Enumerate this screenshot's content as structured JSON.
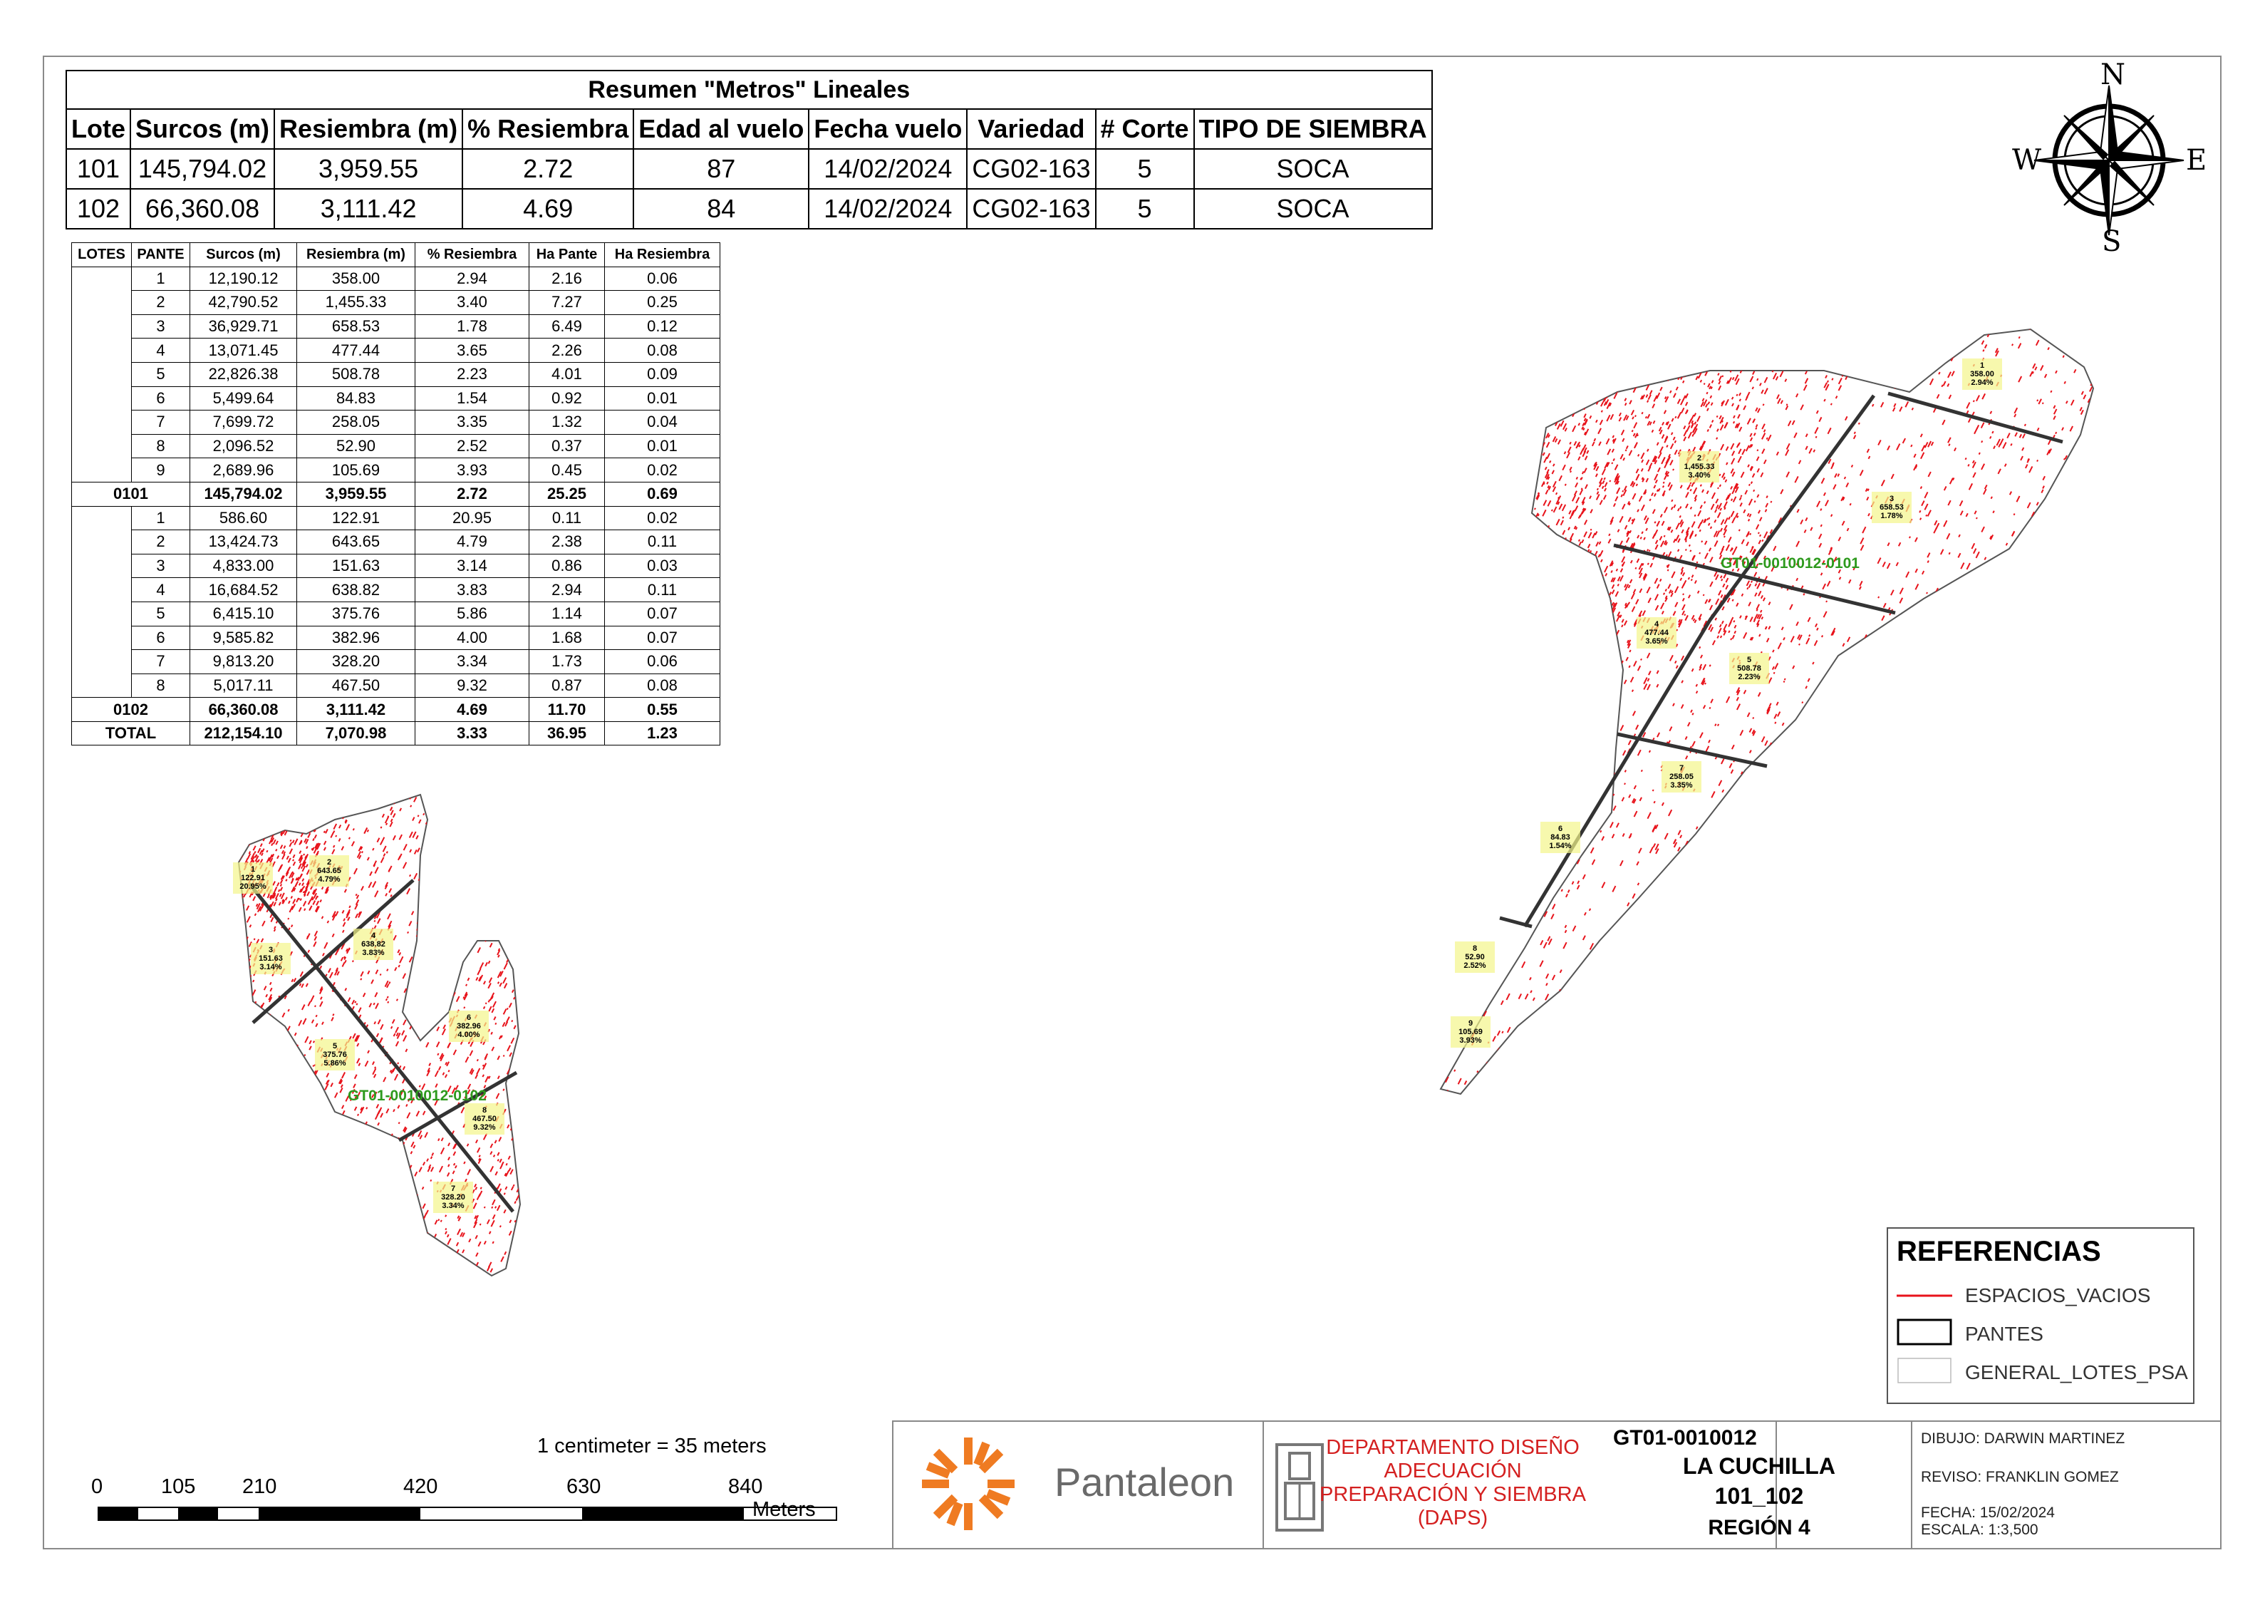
{
  "summary": {
    "title": "Resumen \"Metros\" Lineales",
    "headers": [
      "Lote",
      "Surcos (m)",
      "Resiembra (m)",
      "% Resiembra",
      "Edad al vuelo",
      "Fecha vuelo",
      "Variedad",
      "# Corte",
      "TIPO DE SIEMBRA"
    ],
    "rows": [
      [
        "101",
        "145,794.02",
        "3,959.55",
        "2.72",
        "87",
        "14/02/2024",
        "CG02-163",
        "5",
        "SOCA"
      ],
      [
        "102",
        "66,360.08",
        "3,111.42",
        "4.69",
        "84",
        "14/02/2024",
        "CG02-163",
        "5",
        "SOCA"
      ]
    ]
  },
  "detail": {
    "headers": [
      "LOTES",
      "PANTE",
      "Surcos (m)",
      "Resiembra (m)",
      "% Resiembra",
      "Ha Pante",
      "Ha Resiembra"
    ],
    "lote101_rows": [
      [
        "1",
        "12,190.12",
        "358.00",
        "2.94",
        "2.16",
        "0.06"
      ],
      [
        "2",
        "42,790.52",
        "1,455.33",
        "3.40",
        "7.27",
        "0.25"
      ],
      [
        "3",
        "36,929.71",
        "658.53",
        "1.78",
        "6.49",
        "0.12"
      ],
      [
        "4",
        "13,071.45",
        "477.44",
        "3.65",
        "2.26",
        "0.08"
      ],
      [
        "5",
        "22,826.38",
        "508.78",
        "2.23",
        "4.01",
        "0.09"
      ],
      [
        "6",
        "5,499.64",
        "84.83",
        "1.54",
        "0.92",
        "0.01"
      ],
      [
        "7",
        "7,699.72",
        "258.05",
        "3.35",
        "1.32",
        "0.04"
      ],
      [
        "8",
        "2,096.52",
        "52.90",
        "2.52",
        "0.37",
        "0.01"
      ],
      [
        "9",
        "2,689.96",
        "105.69",
        "3.93",
        "0.45",
        "0.02"
      ]
    ],
    "lote101_subtotal": [
      "0101",
      "145,794.02",
      "3,959.55",
      "2.72",
      "25.25",
      "0.69"
    ],
    "lote102_rows": [
      [
        "1",
        "586.60",
        "122.91",
        "20.95",
        "0.11",
        "0.02"
      ],
      [
        "2",
        "13,424.73",
        "643.65",
        "4.79",
        "2.38",
        "0.11"
      ],
      [
        "3",
        "4,833.00",
        "151.63",
        "3.14",
        "0.86",
        "0.03"
      ],
      [
        "4",
        "16,684.52",
        "638.82",
        "3.83",
        "2.94",
        "0.11"
      ],
      [
        "5",
        "6,415.10",
        "375.76",
        "5.86",
        "1.14",
        "0.07"
      ],
      [
        "6",
        "9,585.82",
        "382.96",
        "4.00",
        "1.68",
        "0.07"
      ],
      [
        "7",
        "9,813.20",
        "328.20",
        "3.34",
        "1.73",
        "0.06"
      ],
      [
        "8",
        "5,017.11",
        "467.50",
        "9.32",
        "0.87",
        "0.08"
      ]
    ],
    "lote102_subtotal": [
      "0102",
      "66,360.08",
      "3,111.42",
      "4.69",
      "11.70",
      "0.55"
    ],
    "total": [
      "TOTAL",
      "212,154.10",
      "7,070.98",
      "3.33",
      "36.95",
      "1.23"
    ]
  },
  "compass": {
    "n": "N",
    "s": "S",
    "e": "E",
    "w": "W"
  },
  "map": {
    "lot101_label": "GT01-0010012-0101",
    "lot102_label": "GT01-0010012-0102",
    "lot101_pantes": [
      {
        "v": "358.00",
        "p": "2.94%"
      },
      {
        "v": "1,455.33",
        "p": "3.40%"
      },
      {
        "v": "658.53",
        "p": "1.78%"
      },
      {
        "v": "477.44",
        "p": "3.65%"
      },
      {
        "v": "508.78",
        "p": "2.23%"
      },
      {
        "v": "84.83",
        "p": "1.54%"
      },
      {
        "v": "258.05",
        "p": "3.35%"
      },
      {
        "v": "52.90",
        "p": "2.52%"
      },
      {
        "v": "105.69",
        "p": "3.93%"
      }
    ],
    "lot102_pantes": [
      {
        "v": "122.91",
        "p": "20.95%"
      },
      {
        "v": "643.65",
        "p": "4.79%"
      },
      {
        "v": "151.63",
        "p": "3.14%"
      },
      {
        "v": "638.82",
        "p": "3.83%"
      },
      {
        "v": "375.76",
        "p": "5.86%"
      },
      {
        "v": "382.96",
        "p": "4.00%"
      },
      {
        "v": "328.20",
        "p": "3.34%"
      },
      {
        "v": "467.50",
        "p": "9.32%"
      }
    ],
    "gap_color": "#e8131b"
  },
  "legend": {
    "title": "REFERENCIAS",
    "items": [
      "ESPACIOS_VACIOS",
      "PANTES",
      "GENERAL_LOTES_PSA"
    ]
  },
  "scale": {
    "text": "1 centimeter = 35 meters",
    "ticks": [
      "0",
      "105",
      "210",
      "420",
      "630",
      "840"
    ],
    "unit": "Meters"
  },
  "titleblock": {
    "company": "Pantaleon",
    "dept": "DEPARTAMENTO DISEÑO ADECUACIÓN PREPARACIÓN Y SIEMBRA (DAPS)",
    "code": "GT01-0010012",
    "farm": "LA CUCHILLA",
    "lots": "101_102",
    "region": "REGIÓN 4",
    "dibujo": "DIBUJO: DARWIN MARTINEZ",
    "reviso": "REVISO: FRANKLIN GOMEZ",
    "fecha": "FECHA: 15/02/2024",
    "escala": "ESCALA: 1:3,500"
  },
  "colors": {
    "accent_orange": "#ef7b22",
    "dept_red": "#d42020",
    "label_green": "#2e9a1e"
  }
}
